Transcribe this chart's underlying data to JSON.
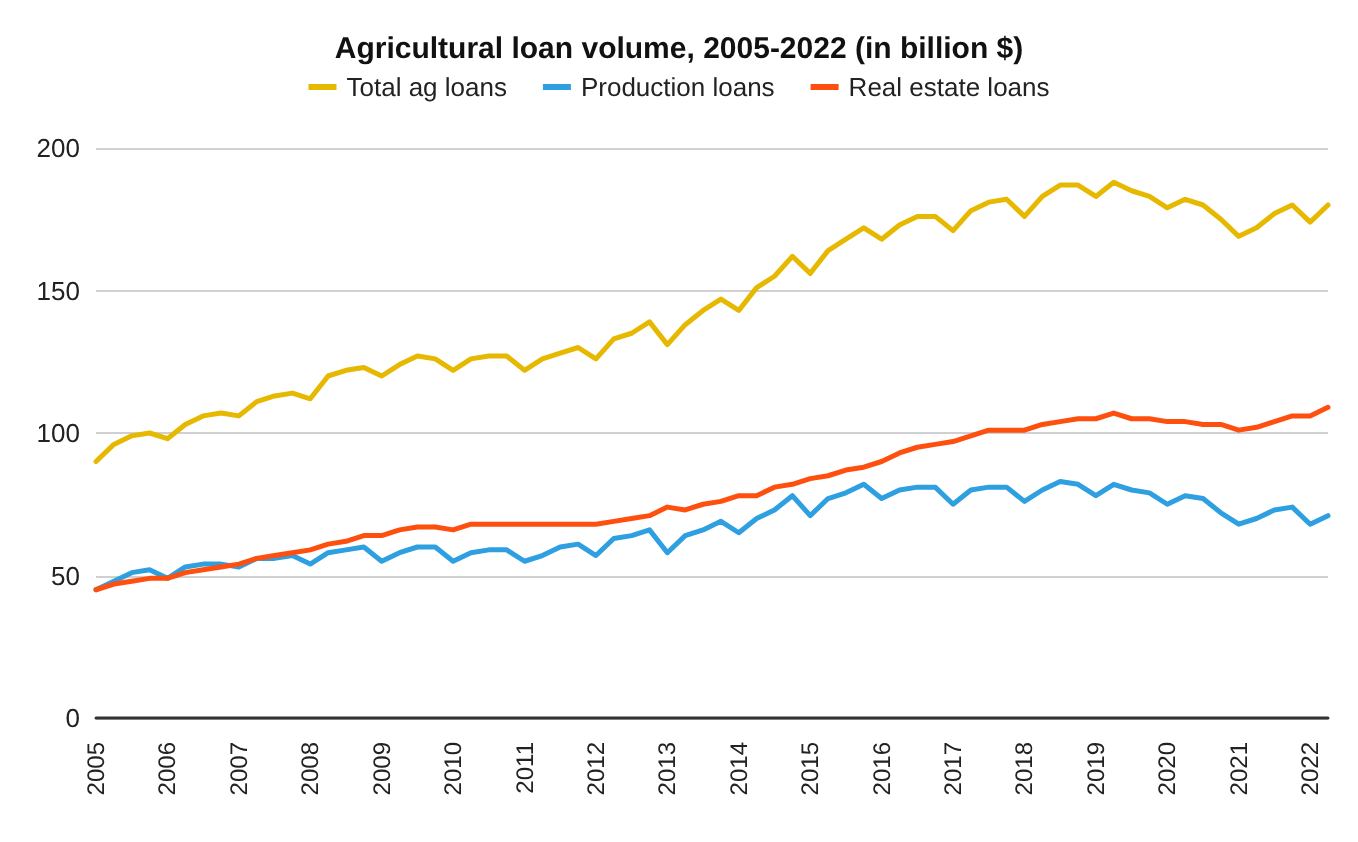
{
  "chart_data": {
    "type": "line",
    "title": "Agricultural loan volume, 2005-2022 (in billion $)",
    "categories": [
      "2005",
      null,
      null,
      null,
      "2006",
      null,
      null,
      null,
      "2007",
      null,
      null,
      null,
      "2008",
      null,
      null,
      null,
      "2009",
      null,
      null,
      null,
      "2010",
      null,
      null,
      null,
      "2011",
      null,
      null,
      null,
      "2012",
      null,
      null,
      null,
      "2013",
      null,
      null,
      null,
      "2014",
      null,
      null,
      null,
      "2015",
      null,
      null,
      null,
      "2016",
      null,
      null,
      null,
      "2017",
      null,
      null,
      null,
      "2018",
      null,
      null,
      null,
      "2019",
      null,
      null,
      null,
      "2020",
      null,
      null,
      null,
      "2021",
      null,
      null,
      null,
      "2022",
      null
    ],
    "series": [
      {
        "name": "Total ag loans",
        "color": "#e6b800",
        "values": [
          90,
          96,
          99,
          100,
          98,
          103,
          106,
          107,
          106,
          111,
          113,
          114,
          112,
          120,
          122,
          123,
          120,
          124,
          127,
          126,
          122,
          126,
          127,
          127,
          122,
          126,
          128,
          130,
          126,
          133,
          135,
          139,
          131,
          138,
          143,
          147,
          143,
          151,
          155,
          162,
          156,
          164,
          168,
          172,
          168,
          173,
          176,
          176,
          171,
          178,
          181,
          182,
          176,
          183,
          187,
          187,
          183,
          188,
          185,
          183,
          179,
          182,
          180,
          175,
          169,
          172,
          177,
          180,
          174,
          180
        ]
      },
      {
        "name": "Production loans",
        "color": "#2e9fe0",
        "values": [
          45,
          48,
          51,
          52,
          49,
          53,
          54,
          54,
          53,
          56,
          56,
          57,
          54,
          58,
          59,
          60,
          55,
          58,
          60,
          60,
          55,
          58,
          59,
          59,
          55,
          57,
          60,
          61,
          57,
          63,
          64,
          66,
          58,
          64,
          66,
          69,
          65,
          70,
          73,
          78,
          71,
          77,
          79,
          82,
          77,
          80,
          81,
          81,
          75,
          80,
          81,
          81,
          76,
          80,
          83,
          82,
          78,
          82,
          80,
          79,
          75,
          78,
          77,
          72,
          68,
          70,
          73,
          74,
          68,
          71
        ]
      },
      {
        "name": "Real estate loans",
        "color": "#ff4f0f",
        "values": [
          45,
          47,
          48,
          49,
          49,
          51,
          52,
          53,
          54,
          56,
          57,
          58,
          59,
          61,
          62,
          64,
          64,
          66,
          67,
          67,
          66,
          68,
          68,
          68,
          68,
          68,
          68,
          68,
          68,
          69,
          70,
          71,
          74,
          73,
          75,
          76,
          78,
          78,
          81,
          82,
          84,
          85,
          87,
          88,
          90,
          93,
          95,
          96,
          97,
          99,
          101,
          101,
          101,
          103,
          104,
          105,
          105,
          107,
          105,
          105,
          104,
          104,
          103,
          103,
          101,
          102,
          104,
          106,
          106,
          109
        ]
      }
    ],
    "ylim": [
      0,
      200
    ],
    "yticks": [
      0,
      50,
      100,
      150,
      200
    ],
    "grid": "y",
    "legend": "top",
    "marker": "none",
    "line_style": "solid"
  }
}
